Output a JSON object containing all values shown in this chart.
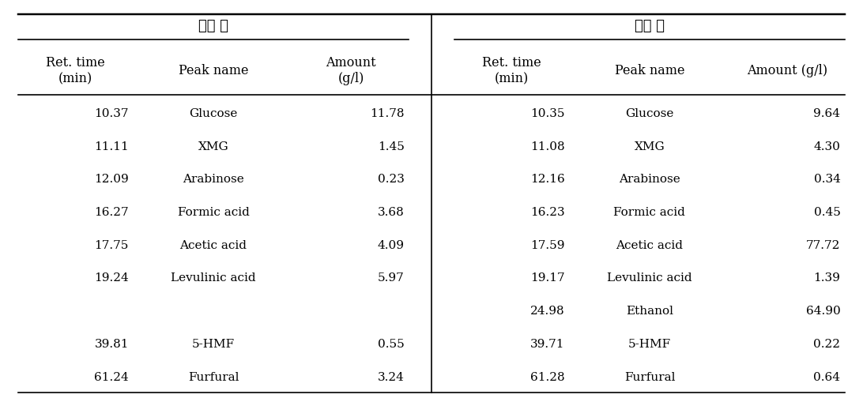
{
  "group_headers": [
    "추출 전",
    "추출 후"
  ],
  "col_headers_before": [
    "Ret. time\n(min)",
    "Peak name",
    "Amount\n(g/l)"
  ],
  "col_headers_after": [
    "Ret. time\n(min)",
    "Peak name",
    "Amount (g/l)"
  ],
  "rows_before": [
    [
      "10.37",
      "Glucose",
      "11.78"
    ],
    [
      "11.11",
      "XMG",
      "1.45"
    ],
    [
      "12.09",
      "Arabinose",
      "0.23"
    ],
    [
      "16.27",
      "Formic acid",
      "3.68"
    ],
    [
      "17.75",
      "Acetic acid",
      "4.09"
    ],
    [
      "19.24",
      "Levulinic acid",
      "5.97"
    ],
    [
      "",
      "",
      ""
    ],
    [
      "39.81",
      "5-HMF",
      "0.55"
    ],
    [
      "61.24",
      "Furfural",
      "3.24"
    ]
  ],
  "rows_after": [
    [
      "10.35",
      "Glucose",
      "9.64"
    ],
    [
      "11.08",
      "XMG",
      "4.30"
    ],
    [
      "12.16",
      "Arabinose",
      "0.34"
    ],
    [
      "16.23",
      "Formic acid",
      "0.45"
    ],
    [
      "17.59",
      "Acetic acid",
      "77.72"
    ],
    [
      "19.17",
      "Levulinic acid",
      "1.39"
    ],
    [
      "24.98",
      "Ethanol",
      "64.90"
    ],
    [
      "39.71",
      "5-HMF",
      "0.22"
    ],
    [
      "61.28",
      "Furfural",
      "0.64"
    ]
  ],
  "background_color": "#ffffff",
  "text_color": "#000000",
  "font_size": 11,
  "header_font_size": 11.5,
  "group_header_font_size": 13
}
